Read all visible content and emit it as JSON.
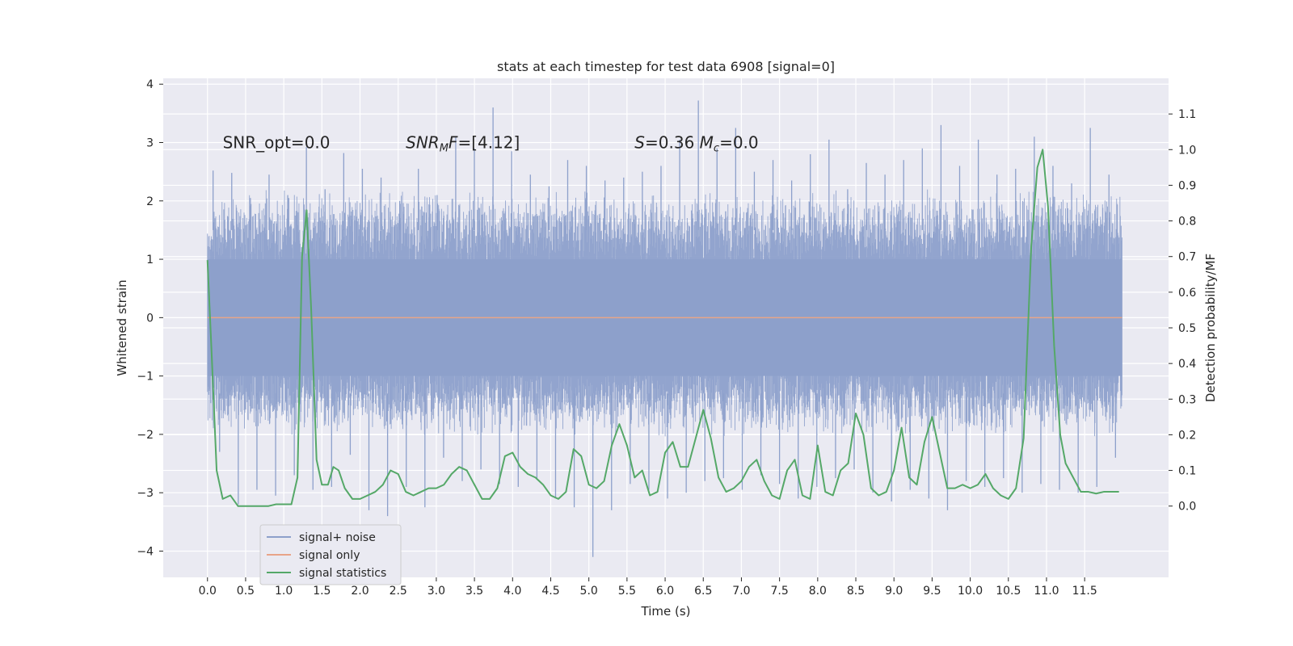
{
  "chart_data": {
    "type": "line",
    "title": "stats at each timestep for test data 6908 [signal=0]",
    "xlabel": "Time (s)",
    "ylabel": "Whitened strain",
    "y2label": "Detection probability/MF",
    "xlim": [
      -0.58,
      12.6
    ],
    "ylim": [
      -4.45,
      4.1
    ],
    "y2lim": [
      -0.2,
      1.2
    ],
    "xticks": [
      "0.0",
      "0.5",
      "1.0",
      "1.5",
      "2.0",
      "2.5",
      "3.0",
      "3.5",
      "4.0",
      "4.5",
      "5.0",
      "5.5",
      "6.0",
      "6.5",
      "7.0",
      "7.5",
      "8.0",
      "8.5",
      "9.0",
      "9.5",
      "10.0",
      "10.5",
      "11.0",
      "11.5"
    ],
    "yticks": [
      "4",
      "3",
      "2",
      "1",
      "0",
      "−1",
      "−2",
      "−3",
      "−4"
    ],
    "y2ticks": [
      "1.1",
      "1.0",
      "0.9",
      "0.8",
      "0.7",
      "0.6",
      "0.5",
      "0.4",
      "0.3",
      "0.2",
      "0.1",
      "0.0"
    ],
    "grid": true,
    "legend_position": "lower-left",
    "annotations": [
      {
        "x": 0.2,
        "y": 2.9,
        "text": "SNR_opt=0.0",
        "italic_part": "",
        "tail": ""
      },
      {
        "x": 2.6,
        "y": 2.9,
        "text": "SNR",
        "sub": "M",
        "italic_part": "F",
        "tail": "=[4.12]"
      },
      {
        "x": 5.6,
        "y": 2.9,
        "text": "S",
        "tail": "=0.36  ",
        "mc": "M",
        "mc_sub": "c",
        "mc_tail": "=0.0"
      }
    ],
    "series": [
      {
        "name": "signal+ noise",
        "color": "#8da0cb",
        "style": "noise-band",
        "x_range": [
          0.0,
          11.99
        ],
        "band_core": [
          -1.45,
          1.7
        ],
        "spike_top": [
          2.52,
          2.48,
          2.05,
          2.45,
          2.1,
          2.92,
          2.2,
          2.82,
          2.55,
          2.4,
          2.0,
          2.55,
          2.1,
          3.1,
          2.9,
          3.6,
          2.85,
          2.45,
          2.25,
          2.7,
          2.6,
          2.35,
          2.4,
          2.5,
          2.6,
          3.05,
          3.72,
          2.9,
          3.25,
          2.5,
          2.7,
          2.35,
          2.8,
          3.05,
          2.2,
          2.65,
          2.45,
          2.7,
          2.9,
          3.3,
          2.6,
          3.05,
          2.45,
          2.55,
          3.1,
          2.6,
          2.3,
          3.25,
          2.45
        ],
        "spike_bottom": [
          -2.3,
          -3.2,
          -2.95,
          -3.05,
          -2.7,
          -2.95,
          -2.9,
          -2.35,
          -3.3,
          -3.4,
          -2.9,
          -3.25,
          -2.4,
          -2.8,
          -2.6,
          -2.85,
          -2.9,
          -2.75,
          -3.1,
          -3.25,
          -4.1,
          -3.3,
          -2.85,
          -2.95,
          -3.1,
          -3.0,
          -2.8,
          -2.75,
          -2.95,
          -2.7,
          -2.85,
          -3.1,
          -2.9,
          -2.75,
          -2.6,
          -3.0,
          -3.15,
          -2.95,
          -3.1,
          -3.3,
          -2.8,
          -2.9,
          -2.75,
          -3.0,
          -2.85,
          -2.95,
          -3.0,
          -2.9,
          -2.4
        ]
      },
      {
        "name": "signal only",
        "color": "#e8a488",
        "x": [
          0.0,
          11.99
        ],
        "y": [
          0.0,
          0.0
        ]
      },
      {
        "name": "signal statistics",
        "color": "#55a868",
        "axis": "right",
        "x": [
          0.0,
          0.05,
          0.12,
          0.2,
          0.3,
          0.4,
          0.5,
          0.6,
          0.7,
          0.8,
          0.9,
          1.0,
          1.1,
          1.18,
          1.24,
          1.3,
          1.36,
          1.43,
          1.5,
          1.58,
          1.65,
          1.72,
          1.8,
          1.9,
          2.0,
          2.1,
          2.2,
          2.3,
          2.4,
          2.5,
          2.6,
          2.7,
          2.8,
          2.9,
          3.0,
          3.1,
          3.2,
          3.3,
          3.4,
          3.5,
          3.6,
          3.7,
          3.8,
          3.9,
          4.0,
          4.1,
          4.2,
          4.3,
          4.4,
          4.5,
          4.6,
          4.7,
          4.8,
          4.9,
          5.0,
          5.1,
          5.2,
          5.3,
          5.4,
          5.5,
          5.6,
          5.7,
          5.8,
          5.9,
          6.0,
          6.1,
          6.2,
          6.3,
          6.4,
          6.5,
          6.6,
          6.7,
          6.8,
          6.9,
          7.0,
          7.1,
          7.2,
          7.3,
          7.4,
          7.5,
          7.6,
          7.7,
          7.8,
          7.9,
          8.0,
          8.1,
          8.2,
          8.3,
          8.4,
          8.5,
          8.6,
          8.7,
          8.8,
          8.9,
          9.0,
          9.1,
          9.2,
          9.3,
          9.4,
          9.5,
          9.6,
          9.7,
          9.8,
          9.9,
          10.0,
          10.1,
          10.2,
          10.3,
          10.4,
          10.5,
          10.6,
          10.7,
          10.8,
          10.88,
          10.95,
          11.02,
          11.1,
          11.18,
          11.25,
          11.35,
          11.45,
          11.55,
          11.65,
          11.75,
          11.85,
          11.95
        ],
        "y": [
          0.69,
          0.45,
          0.1,
          0.02,
          0.03,
          0.0,
          0.0,
          0.0,
          0.0,
          0.0,
          0.005,
          0.005,
          0.005,
          0.08,
          0.7,
          0.83,
          0.55,
          0.13,
          0.06,
          0.06,
          0.11,
          0.1,
          0.05,
          0.02,
          0.02,
          0.03,
          0.04,
          0.06,
          0.1,
          0.09,
          0.04,
          0.03,
          0.04,
          0.05,
          0.05,
          0.06,
          0.09,
          0.11,
          0.1,
          0.06,
          0.02,
          0.02,
          0.05,
          0.14,
          0.15,
          0.11,
          0.09,
          0.08,
          0.06,
          0.03,
          0.02,
          0.04,
          0.16,
          0.14,
          0.06,
          0.05,
          0.07,
          0.17,
          0.23,
          0.17,
          0.08,
          0.1,
          0.03,
          0.04,
          0.15,
          0.18,
          0.11,
          0.11,
          0.19,
          0.27,
          0.19,
          0.08,
          0.04,
          0.05,
          0.07,
          0.11,
          0.13,
          0.07,
          0.03,
          0.02,
          0.1,
          0.13,
          0.03,
          0.02,
          0.17,
          0.04,
          0.03,
          0.1,
          0.12,
          0.26,
          0.2,
          0.05,
          0.03,
          0.04,
          0.1,
          0.22,
          0.08,
          0.06,
          0.18,
          0.25,
          0.15,
          0.05,
          0.05,
          0.06,
          0.05,
          0.06,
          0.09,
          0.05,
          0.03,
          0.02,
          0.05,
          0.19,
          0.73,
          0.95,
          1.0,
          0.84,
          0.45,
          0.2,
          0.12,
          0.08,
          0.04,
          0.04,
          0.035,
          0.04,
          0.04,
          0.04
        ]
      }
    ],
    "legend": [
      "signal+ noise",
      "signal only",
      "signal statistics"
    ]
  }
}
